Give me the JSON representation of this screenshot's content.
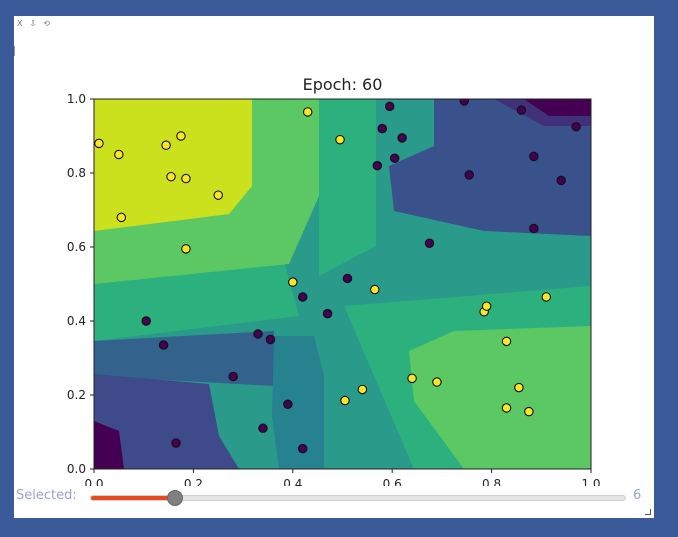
{
  "window": {
    "toolbar_icons": [
      "X",
      "⇩",
      "⟲"
    ]
  },
  "chart_data": {
    "type": "scatter",
    "title": "Epoch: 60",
    "xlabel": "",
    "ylabel": "",
    "xlim": [
      0.0,
      1.0
    ],
    "ylim": [
      0.0,
      1.0
    ],
    "x_ticks": [
      "0.0",
      "0.2",
      "0.4",
      "0.6",
      "0.8",
      "1.0"
    ],
    "y_ticks": [
      "0.0",
      "0.2",
      "0.4",
      "0.6",
      "0.8",
      "1.0"
    ],
    "grid": false,
    "background": "filled contour (decision regions, viridis colormap)",
    "colors": {
      "class_1": "#fde725",
      "class_0": "#440154"
    },
    "series": [
      {
        "values": [
          [
            0.01,
            0.88
          ],
          [
            0.05,
            0.85
          ],
          [
            0.055,
            0.68
          ],
          [
            0.145,
            0.875
          ],
          [
            0.155,
            0.79
          ],
          [
            0.175,
            0.9
          ],
          [
            0.185,
            0.785
          ],
          [
            0.185,
            0.595
          ],
          [
            0.25,
            0.74
          ],
          [
            0.43,
            0.965
          ],
          [
            0.495,
            0.89
          ],
          [
            0.4,
            0.505
          ],
          [
            0.565,
            0.485
          ],
          [
            0.505,
            0.185
          ],
          [
            0.54,
            0.215
          ],
          [
            0.64,
            0.245
          ],
          [
            0.69,
            0.235
          ],
          [
            0.785,
            0.425
          ],
          [
            0.79,
            0.44
          ],
          [
            0.83,
            0.345
          ],
          [
            0.91,
            0.465
          ],
          [
            0.83,
            0.165
          ],
          [
            0.855,
            0.22
          ],
          [
            0.875,
            0.155
          ]
        ]
      },
      {
        "values": [
          [
            0.595,
            0.98
          ],
          [
            0.58,
            0.92
          ],
          [
            0.62,
            0.895
          ],
          [
            0.57,
            0.82
          ],
          [
            0.605,
            0.84
          ],
          [
            0.745,
            0.995
          ],
          [
            0.86,
            0.97
          ],
          [
            0.97,
            0.925
          ],
          [
            0.885,
            0.845
          ],
          [
            0.755,
            0.795
          ],
          [
            0.94,
            0.78
          ],
          [
            0.885,
            0.65
          ],
          [
            0.675,
            0.61
          ],
          [
            0.51,
            0.515
          ],
          [
            0.42,
            0.465
          ],
          [
            0.47,
            0.42
          ],
          [
            0.105,
            0.4
          ],
          [
            0.33,
            0.365
          ],
          [
            0.355,
            0.35
          ],
          [
            0.14,
            0.335
          ],
          [
            0.28,
            0.25
          ],
          [
            0.39,
            0.175
          ],
          [
            0.34,
            0.11
          ],
          [
            0.42,
            0.055
          ],
          [
            0.165,
            0.07
          ]
        ]
      }
    ]
  },
  "slider": {
    "label": "Selected:",
    "value_label": "6",
    "value": 6,
    "min": 0,
    "max": 38
  }
}
